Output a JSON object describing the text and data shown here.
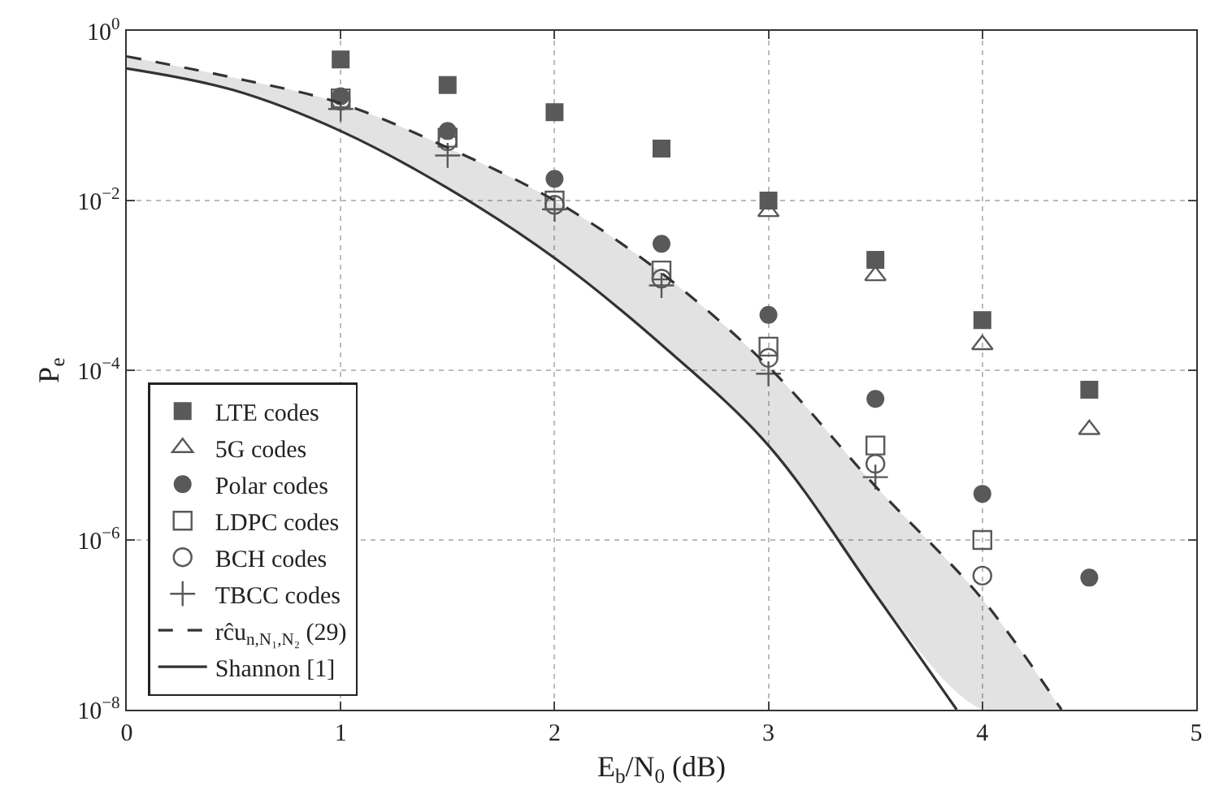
{
  "chart_data": {
    "type": "scatter",
    "xlabel": "E$_{b}$/N$_{0}$ (dB)",
    "ylabel": "P$_{e}$",
    "x": [
      1,
      1.5,
      2,
      2.5,
      3,
      3.5,
      4,
      4.5
    ],
    "xlim": [
      0,
      5
    ],
    "xticks": [
      0,
      1,
      2,
      3,
      4,
      5
    ],
    "ylim": [
      1e-08,
      1
    ],
    "log": "y",
    "yticks": [
      {
        "value": 1e-08,
        "label": "10$^{−8}$"
      },
      {
        "value": 1e-06,
        "label": "10$^{−6}$"
      },
      {
        "value": 0.0001,
        "label": "10$^{−4}$"
      },
      {
        "value": 0.01,
        "label": "10$^{−2}$"
      },
      {
        "value": 1,
        "label": "10$^{0}$"
      }
    ],
    "grid": true,
    "legend": "bottom left",
    "series": [
      {
        "name": "LTE codes",
        "color": "#595959",
        "marker": "square",
        "values": [
          0.46,
          0.23,
          0.11,
          0.041,
          0.01,
          0.002,
          0.00039,
          5.9e-05
        ]
      },
      {
        "name": "5G codes",
        "color": "#595959",
        "marker": "triangle",
        "values": [
          null,
          null,
          null,
          null,
          0.0074,
          0.0013,
          0.0002,
          2e-05
        ]
      },
      {
        "name": "Polar codes",
        "color": "#595959",
        "marker": "circle",
        "values": [
          0.17,
          0.066,
          0.018,
          0.0031,
          0.00045,
          4.6e-05,
          3.5e-06,
          3.6e-07
        ]
      },
      {
        "name": "LDPC codes",
        "color": "#595959",
        "marker": "square-open",
        "values": [
          0.16,
          0.055,
          0.01,
          0.0015,
          0.00019,
          1.3e-05,
          1e-06,
          null
        ]
      },
      {
        "name": "BCH codes",
        "color": "#595959",
        "marker": "circle-open",
        "values": [
          0.15,
          0.05,
          0.0089,
          0.0012,
          0.00014,
          7.9e-06,
          3.8e-07,
          null
        ]
      },
      {
        "name": "TBCC codes",
        "color": "#595959",
        "marker": "cross",
        "values": [
          0.12,
          0.034,
          0.0079,
          0.001,
          9.1e-05,
          5.5e-06,
          null,
          null
        ]
      },
      {
        "name": "rĉu$_{n,N₁,N₂}$ (29)",
        "type": "line",
        "line_style": "dashed",
        "color": "#333333",
        "x": [
          0,
          0.5,
          1,
          1.5,
          2,
          2.5,
          3,
          3.5,
          4,
          4.37
        ],
        "values": [
          0.5,
          0.28,
          0.14,
          0.042,
          0.01,
          0.0014,
          0.00011,
          4.3e-06,
          2e-07,
          1e-08
        ],
        "lower": [
          0.36,
          0.2,
          0.066,
          0.014,
          0.0021,
          0.0002,
          1.3e-05,
          2.3e-07,
          1e-08,
          1e-08
        ],
        "upper": [
          0.5,
          0.28,
          0.14,
          0.042,
          0.01,
          0.0014,
          0.00011,
          4.3e-06,
          2e-07,
          1e-08
        ]
      },
      {
        "name": "Shannon [1]",
        "type": "line",
        "line_style": "solid",
        "color": "#333333",
        "x": [
          0,
          0.5,
          1,
          1.5,
          2,
          2.5,
          3,
          3.5,
          3.88
        ],
        "values": [
          0.36,
          0.2,
          0.066,
          0.014,
          0.0021,
          0.0002,
          1.3e-05,
          2.3e-07,
          1e-08
        ]
      }
    ]
  }
}
